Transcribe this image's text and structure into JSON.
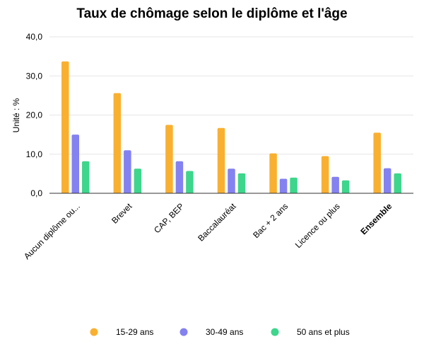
{
  "chart_data": {
    "type": "bar",
    "title": "Taux de chômage selon le diplôme et l'âge",
    "ylabel": "Unité : %",
    "xlabel": "",
    "ylim": [
      0,
      40
    ],
    "yticks": [
      "0,0",
      "10,0",
      "20,0",
      "30,0",
      "40,0"
    ],
    "ytick_values": [
      0,
      10,
      20,
      30,
      40
    ],
    "categories": [
      "Aucun diplôme ou...",
      "Brevet",
      "CAP, BEP",
      "Baccalauréat",
      "Bac + 2 ans",
      "Licence ou plus",
      "Ensemble"
    ],
    "bold_category": "Ensemble",
    "series": [
      {
        "name": "15-29 ans",
        "color": "#F9B030",
        "values": [
          33.7,
          25.6,
          17.5,
          16.7,
          10.2,
          9.5,
          15.5
        ]
      },
      {
        "name": "30-49 ans",
        "color": "#8481F0",
        "values": [
          15.0,
          11.0,
          8.2,
          6.3,
          3.7,
          4.2,
          6.4
        ]
      },
      {
        "name": "50 ans et plus",
        "color": "#3DD68C",
        "values": [
          8.2,
          6.3,
          5.7,
          5.1,
          4.0,
          3.3,
          5.1
        ]
      }
    ],
    "grid": true,
    "legend_position": "bottom"
  }
}
